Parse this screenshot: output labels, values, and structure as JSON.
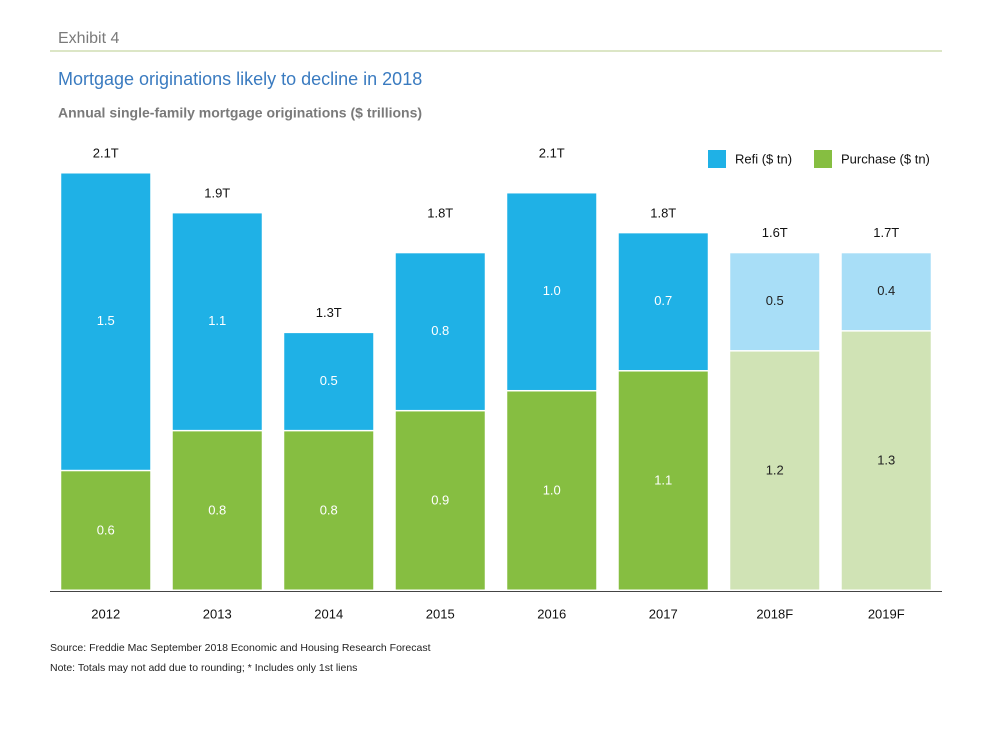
{
  "exhibit": "Exhibit 4",
  "chart_data": {
    "type": "stacked_bar",
    "title": "Mortgage originations likely to decline in 2018",
    "subtitle": "Annual single-family mortgage originations ($ trillions)",
    "categories": [
      "2012",
      "2013",
      "2014",
      "2015",
      "2016",
      "2017",
      "2018F",
      "2019F"
    ],
    "series": [
      {
        "name": "Purchase ($ tn)",
        "color": "#86be41",
        "colors": [
          "#86be41",
          "#86be41",
          "#86be41",
          "#86be41",
          "#86be41",
          "#86be41",
          "#d0e3b5",
          "#d0e3b5"
        ],
        "values": [
          0.6,
          0.8,
          0.8,
          0.9,
          1.0,
          1.1,
          1.2,
          1.3
        ],
        "value_labels": [
          "0.6",
          "0.8",
          "0.8",
          "0.9",
          "1.0",
          "1.1",
          "1.2",
          "1.3"
        ]
      },
      {
        "name": "Refi ($ tn)",
        "color": "#1fb1e6",
        "colors": [
          "#1fb1e6",
          "#1fb1e6",
          "#1fb1e6",
          "#1fb1e6",
          "#1fb1e6",
          "#1fb1e6",
          "#a8def7",
          "#a8def7"
        ],
        "values": [
          1.5,
          1.1,
          0.5,
          0.8,
          1.0,
          0.7,
          0.5,
          0.4
        ],
        "value_labels": [
          "1.5",
          "1.1",
          "0.5",
          "0.8",
          "1.0",
          "0.7",
          "0.5",
          "0.4"
        ]
      }
    ],
    "totals": {
      "values": [
        2.1,
        1.9,
        1.3,
        1.8,
        2.1,
        1.8,
        1.6,
        1.7
      ],
      "value_labels": [
        "2.1T",
        "1.9T",
        "1.3T",
        "1.8T",
        "2.1T",
        "1.8T",
        "1.6T",
        "1.7T"
      ]
    },
    "legend": "top-right",
    "source": "Source: Freddie Mac September 2018 Economic and Housing Research Forecast",
    "note": "Note: Totals may not add due to rounding; * Includes only 1st liens"
  }
}
